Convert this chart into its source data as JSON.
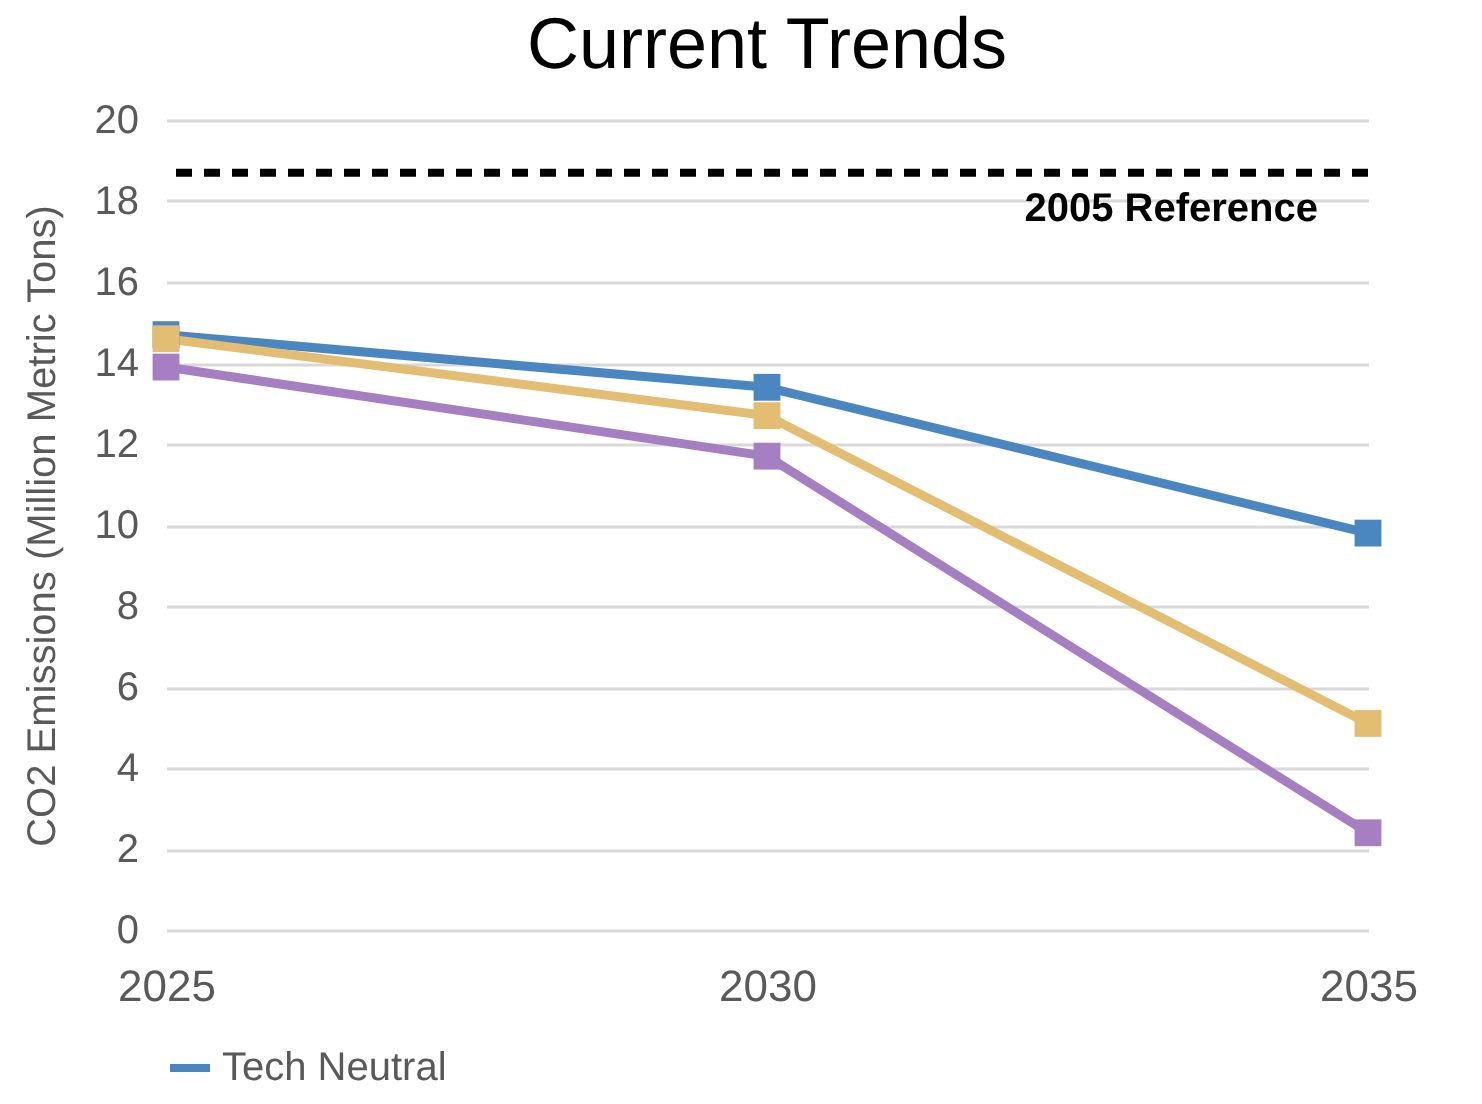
{
  "chart_data": {
    "type": "line",
    "title": "Current Trends",
    "ylabel": "CO2 Emissions (Million Metric Tons)",
    "categories": [
      "2025",
      "2030",
      "2035"
    ],
    "series": [
      {
        "name": "Tech Neutral",
        "color": "#4a86c0",
        "values": [
          14.7,
          13.4,
          9.8
        ]
      },
      {
        "color": "#e2bd72",
        "values": [
          14.6,
          12.7,
          5.1
        ]
      },
      {
        "color": "#a57fc2",
        "values": [
          13.9,
          11.7,
          2.4
        ]
      }
    ],
    "ylim": [
      0,
      20
    ],
    "yticks": [
      0,
      2,
      4,
      6,
      8,
      10,
      12,
      14,
      16,
      18,
      20
    ],
    "grid": "y",
    "legend": "bottom",
    "marker": "square",
    "line_style": "solid",
    "ref_lines": [
      {
        "axis": "y",
        "value": 18.7,
        "label": "2005 Reference",
        "color": "#000000",
        "line_style": "dashed"
      }
    ]
  }
}
